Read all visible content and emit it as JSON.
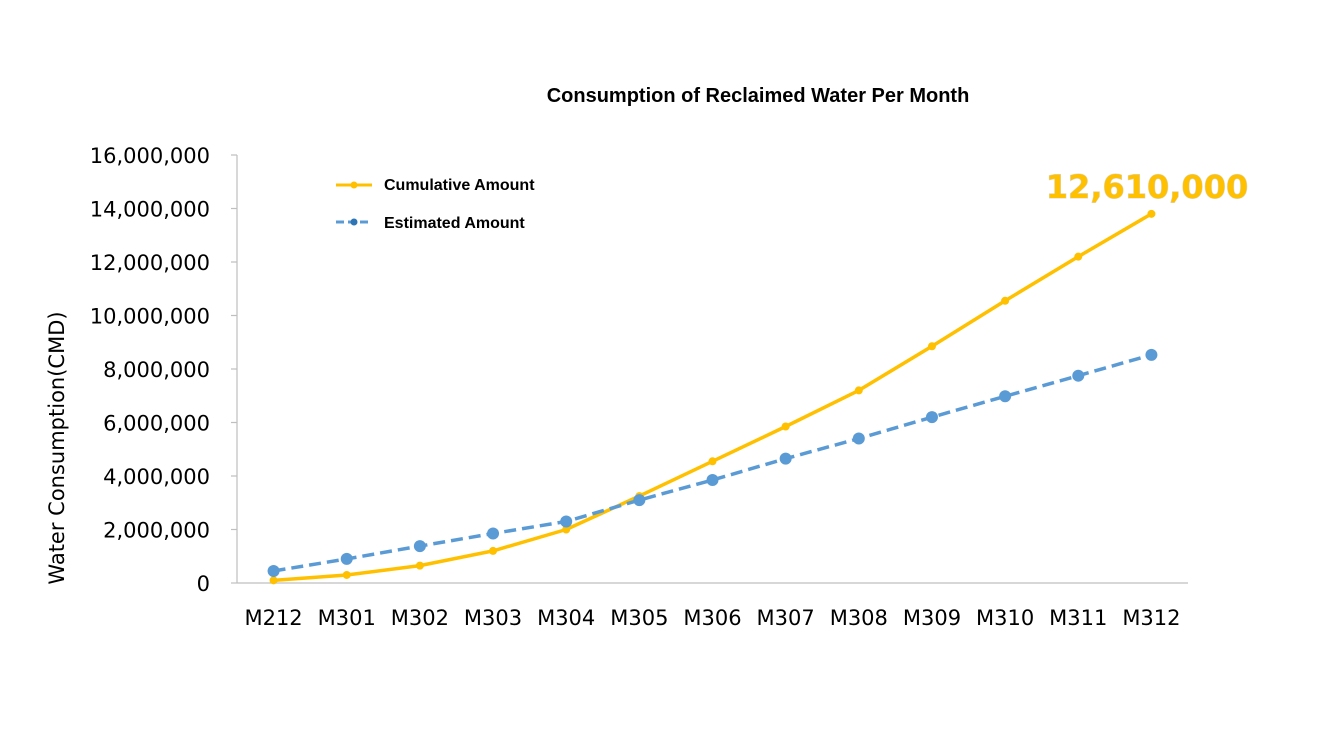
{
  "chart_data": {
    "type": "line",
    "title": "Consumption of Reclaimed Water Per Month",
    "xlabel": "",
    "ylabel": "Water Consumption(CMD)",
    "categories": [
      "M212",
      "M301",
      "M302",
      "M303",
      "M304",
      "M305",
      "M306",
      "M307",
      "M308",
      "M309",
      "M310",
      "M311",
      "M312"
    ],
    "ylim": [
      0,
      16000000
    ],
    "yticks": [
      "0",
      "2,000,000",
      "4,000,000",
      "6,000,000",
      "8,000,000",
      "10,000,000",
      "12,000,000",
      "14,000,000",
      "16,000,000"
    ],
    "grid": false,
    "legend_position": "top-left",
    "series": [
      {
        "name": "Cumulative Amount",
        "color": "#FFC000",
        "style": "solid",
        "values": [
          100000,
          300000,
          650000,
          1200000,
          2000000,
          3250000,
          4550000,
          5850000,
          7200000,
          8850000,
          10550000,
          12200000,
          13800000
        ]
      },
      {
        "name": "Estimated Amount",
        "color": "#5B9BD5",
        "style": "dashed",
        "values": [
          450000,
          900000,
          1380000,
          1850000,
          2300000,
          3100000,
          3850000,
          4650000,
          5400000,
          6200000,
          6980000,
          7750000,
          8530000
        ]
      }
    ],
    "annotation": {
      "text": "12,610,000",
      "color": "#FFC000"
    }
  }
}
